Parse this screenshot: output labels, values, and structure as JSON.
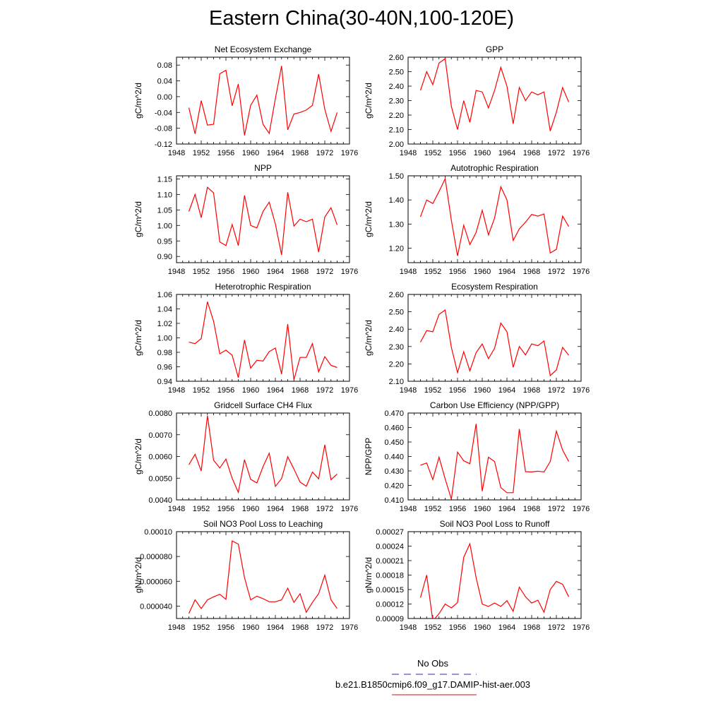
{
  "figure_title": "Eastern China(30-40N,100-120E)",
  "legend": {
    "items": [
      {
        "label": "No Obs",
        "color": "#5555cc",
        "dash": true
      },
      {
        "label": "b.e21.B1850cmip6.f09_g17.DAMIP-hist-aer.003",
        "color": "#e04040",
        "dash": false
      }
    ]
  },
  "series_color": "#ff0000",
  "chart_data": [
    {
      "type": "line",
      "title": "Net Ecosystem Exchange",
      "ylabel": "gC/m^2/d",
      "xlim": [
        1948,
        1976
      ],
      "ylim": [
        -0.12,
        0.1
      ],
      "xticks": [
        "1948",
        "1952",
        "1956",
        "1960",
        "1964",
        "1968",
        "1972",
        "1976"
      ],
      "yticks": [
        -0.12,
        -0.08,
        -0.04,
        0.0,
        0.04,
        0.08
      ],
      "ytick_labels": [
        "-0.12",
        "-0.08",
        "-0.04",
        "0.00",
        "0.04",
        "0.08"
      ],
      "x": [
        1950,
        1951,
        1952,
        1953,
        1954,
        1955,
        1956,
        1957,
        1958,
        1959,
        1960,
        1961,
        1962,
        1963,
        1964,
        1965,
        1966,
        1967,
        1968,
        1969,
        1970,
        1971,
        1972,
        1973,
        1974
      ],
      "values": [
        -0.028,
        -0.094,
        -0.01,
        -0.072,
        -0.07,
        0.058,
        0.067,
        -0.023,
        0.032,
        -0.098,
        -0.022,
        0.004,
        -0.07,
        -0.093,
        -0.005,
        0.078,
        -0.084,
        -0.044,
        -0.04,
        -0.034,
        -0.022,
        0.057,
        -0.032,
        -0.088,
        -0.04
      ]
    },
    {
      "type": "line",
      "title": "GPP",
      "ylabel": "gC/m^2/d",
      "xlim": [
        1948,
        1976
      ],
      "ylim": [
        2.0,
        2.6
      ],
      "xticks": [
        "1948",
        "1952",
        "1956",
        "1960",
        "1964",
        "1968",
        "1972",
        "1976"
      ],
      "yticks": [
        2.0,
        2.1,
        2.2,
        2.3,
        2.4,
        2.5,
        2.6
      ],
      "ytick_labels": [
        "2.00",
        "2.10",
        "2.20",
        "2.30",
        "2.40",
        "2.50",
        "2.60"
      ],
      "x": [
        1950,
        1951,
        1952,
        1953,
        1954,
        1955,
        1956,
        1957,
        1958,
        1959,
        1960,
        1961,
        1962,
        1963,
        1964,
        1965,
        1966,
        1967,
        1968,
        1969,
        1970,
        1971,
        1972,
        1973,
        1974
      ],
      "values": [
        2.37,
        2.5,
        2.41,
        2.56,
        2.59,
        2.26,
        2.1,
        2.3,
        2.15,
        2.37,
        2.36,
        2.25,
        2.37,
        2.53,
        2.4,
        2.14,
        2.39,
        2.3,
        2.36,
        2.34,
        2.36,
        2.09,
        2.22,
        2.39,
        2.29
      ]
    },
    {
      "type": "line",
      "title": "NPP",
      "ylabel": "gC/m^2/d",
      "xlim": [
        1948,
        1976
      ],
      "ylim": [
        0.88,
        1.16
      ],
      "xticks": [
        "1948",
        "1952",
        "1956",
        "1960",
        "1964",
        "1968",
        "1972",
        "1976"
      ],
      "yticks": [
        0.9,
        0.95,
        1.0,
        1.05,
        1.1,
        1.15
      ],
      "ytick_labels": [
        "0.90",
        "0.95",
        "1.00",
        "1.05",
        "1.10",
        "1.15"
      ],
      "x": [
        1950,
        1951,
        1952,
        1953,
        1954,
        1955,
        1956,
        1957,
        1958,
        1959,
        1960,
        1961,
        1962,
        1963,
        1964,
        1965,
        1966,
        1967,
        1968,
        1969,
        1970,
        1971,
        1972,
        1973,
        1974
      ],
      "values": [
        1.045,
        1.1,
        1.025,
        1.123,
        1.105,
        0.947,
        0.935,
        1.003,
        0.935,
        1.097,
        1.0,
        0.992,
        1.045,
        1.075,
        1.005,
        0.905,
        1.107,
        0.998,
        1.02,
        1.012,
        1.02,
        0.914,
        1.027,
        1.057,
        1.002
      ]
    },
    {
      "type": "line",
      "title": "Autotrophic Respiration",
      "ylabel": "gC/m^2/d",
      "xlim": [
        1948,
        1976
      ],
      "ylim": [
        1.14,
        1.5
      ],
      "xticks": [
        "1948",
        "1952",
        "1956",
        "1960",
        "1964",
        "1968",
        "1972",
        "1976"
      ],
      "yticks": [
        1.2,
        1.3,
        1.4,
        1.5
      ],
      "ytick_labels": [
        "1.20",
        "1.30",
        "1.40",
        "1.50"
      ],
      "x": [
        1950,
        1951,
        1952,
        1953,
        1954,
        1955,
        1956,
        1957,
        1958,
        1959,
        1960,
        1961,
        1962,
        1963,
        1964,
        1965,
        1966,
        1967,
        1968,
        1969,
        1970,
        1971,
        1972,
        1973,
        1974
      ],
      "values": [
        1.33,
        1.4,
        1.385,
        1.435,
        1.488,
        1.315,
        1.168,
        1.295,
        1.215,
        1.265,
        1.357,
        1.255,
        1.325,
        1.455,
        1.4,
        1.232,
        1.28,
        1.308,
        1.34,
        1.333,
        1.342,
        1.18,
        1.195,
        1.333,
        1.29
      ]
    },
    {
      "type": "line",
      "title": "Heterotrophic Respiration",
      "ylabel": "gC/m^2/d",
      "xlim": [
        1948,
        1976
      ],
      "ylim": [
        0.94,
        1.06
      ],
      "xticks": [
        "1948",
        "1952",
        "1956",
        "1960",
        "1964",
        "1968",
        "1972",
        "1976"
      ],
      "yticks": [
        0.94,
        0.96,
        0.98,
        1.0,
        1.02,
        1.04,
        1.06
      ],
      "ytick_labels": [
        "0.94",
        "0.96",
        "0.98",
        "1.00",
        "1.02",
        "1.04",
        "1.06"
      ],
      "x": [
        1950,
        1951,
        1952,
        1953,
        1954,
        1955,
        1956,
        1957,
        1958,
        1959,
        1960,
        1961,
        1962,
        1963,
        1964,
        1965,
        1966,
        1967,
        1968,
        1969,
        1970,
        1971,
        1972,
        1973,
        1974
      ],
      "values": [
        0.994,
        0.992,
        0.999,
        1.05,
        1.023,
        0.978,
        0.983,
        0.976,
        0.945,
        0.997,
        0.958,
        0.969,
        0.968,
        0.981,
        0.986,
        0.95,
        1.019,
        0.942,
        0.973,
        0.973,
        0.992,
        0.953,
        0.974,
        0.962,
        0.959
      ]
    },
    {
      "type": "line",
      "title": "Ecosystem Respiration",
      "ylabel": "gC/m^2/d",
      "xlim": [
        1948,
        1976
      ],
      "ylim": [
        2.1,
        2.6
      ],
      "xticks": [
        "1948",
        "1952",
        "1956",
        "1960",
        "1964",
        "1968",
        "1972",
        "1976"
      ],
      "yticks": [
        2.1,
        2.2,
        2.3,
        2.4,
        2.5,
        2.6
      ],
      "ytick_labels": [
        "2.10",
        "2.20",
        "2.30",
        "2.40",
        "2.50",
        "2.60"
      ],
      "x": [
        1950,
        1951,
        1952,
        1953,
        1954,
        1955,
        1956,
        1957,
        1958,
        1959,
        1960,
        1961,
        1962,
        1963,
        1964,
        1965,
        1966,
        1967,
        1968,
        1969,
        1970,
        1971,
        1972,
        1973,
        1974
      ],
      "values": [
        2.325,
        2.392,
        2.385,
        2.485,
        2.51,
        2.295,
        2.15,
        2.27,
        2.16,
        2.265,
        2.315,
        2.23,
        2.29,
        2.435,
        2.385,
        2.18,
        2.3,
        2.252,
        2.315,
        2.305,
        2.332,
        2.132,
        2.165,
        2.295,
        2.25
      ]
    },
    {
      "type": "line",
      "title": "Gridcell Surface CH4 Flux",
      "ylabel": "gC/m^2/d",
      "xlim": [
        1948,
        1976
      ],
      "ylim": [
        0.004,
        0.008
      ],
      "xticks": [
        "1948",
        "1952",
        "1956",
        "1960",
        "1964",
        "1968",
        "1972",
        "1976"
      ],
      "yticks": [
        0.004,
        0.005,
        0.006,
        0.007,
        0.008
      ],
      "ytick_labels": [
        "0.0040",
        "0.0050",
        "0.0060",
        "0.0070",
        "0.0080"
      ],
      "x": [
        1950,
        1951,
        1952,
        1953,
        1954,
        1955,
        1956,
        1957,
        1958,
        1959,
        1960,
        1961,
        1962,
        1963,
        1964,
        1965,
        1966,
        1967,
        1968,
        1969,
        1970,
        1971,
        1972,
        1973,
        1974
      ],
      "values": [
        0.00562,
        0.0061,
        0.00533,
        0.00788,
        0.00583,
        0.00547,
        0.00588,
        0.005,
        0.00435,
        0.00585,
        0.00495,
        0.00478,
        0.00553,
        0.00615,
        0.00462,
        0.00498,
        0.00599,
        0.00542,
        0.00482,
        0.00463,
        0.00528,
        0.00497,
        0.00654,
        0.00493,
        0.00519
      ]
    },
    {
      "type": "line",
      "title": "Carbon Use Efficiency (NPP/GPP)",
      "ylabel": "NPP/GPP",
      "xlim": [
        1948,
        1976
      ],
      "ylim": [
        0.41,
        0.47
      ],
      "xticks": [
        "1948",
        "1952",
        "1956",
        "1960",
        "1964",
        "1968",
        "1972",
        "1976"
      ],
      "yticks": [
        0.41,
        0.42,
        0.43,
        0.44,
        0.45,
        0.46,
        0.47
      ],
      "ytick_labels": [
        "0.410",
        "0.420",
        "0.430",
        "0.440",
        "0.450",
        "0.460",
        "0.470"
      ],
      "x": [
        1950,
        1951,
        1952,
        1953,
        1954,
        1955,
        1956,
        1957,
        1958,
        1959,
        1960,
        1961,
        1962,
        1963,
        1964,
        1965,
        1966,
        1967,
        1968,
        1969,
        1970,
        1971,
        1972,
        1973,
        1974
      ],
      "values": [
        0.434,
        0.4355,
        0.424,
        0.4395,
        0.4245,
        0.4105,
        0.443,
        0.437,
        0.435,
        0.4625,
        0.416,
        0.4395,
        0.4365,
        0.4185,
        0.415,
        0.415,
        0.459,
        0.4295,
        0.4293,
        0.4298,
        0.4293,
        0.4365,
        0.4575,
        0.4445,
        0.4365
      ]
    },
    {
      "type": "line",
      "title": "Soil NO3 Pool Loss to Leaching",
      "ylabel": "gN/m^2/d",
      "xlim": [
        1948,
        1976
      ],
      "ylim": [
        3e-05,
        0.0001
      ],
      "xticks": [
        "1948",
        "1952",
        "1956",
        "1960",
        "1964",
        "1968",
        "1972",
        "1976"
      ],
      "yticks": [
        4e-05,
        6e-05,
        8e-05,
        0.0001
      ],
      "ytick_labels": [
        "0.000040",
        "0.000060",
        "0.000080",
        "0.00010"
      ],
      "x": [
        1950,
        1951,
        1952,
        1953,
        1954,
        1955,
        1956,
        1957,
        1958,
        1959,
        1960,
        1961,
        1962,
        1963,
        1964,
        1965,
        1966,
        1967,
        1968,
        1969,
        1970,
        1971,
        1972,
        1973,
        1974
      ],
      "values": [
        3.4e-05,
        4.5e-05,
        3.8e-05,
        4.5e-05,
        4.75e-05,
        4.95e-05,
        4.55e-05,
        9.25e-05,
        9e-05,
        6.3e-05,
        4.5e-05,
        4.8e-05,
        4.6e-05,
        4.35e-05,
        4.35e-05,
        4.5e-05,
        5.45e-05,
        4.3e-05,
        5e-05,
        3.5e-05,
        4.3e-05,
        5e-05,
        6.5e-05,
        4.5e-05,
        3.8e-05
      ]
    },
    {
      "type": "line",
      "title": "Soil NO3 Pool Loss to Runoff",
      "ylabel": "gN/m^2/d",
      "xlim": [
        1948,
        1976
      ],
      "ylim": [
        9e-05,
        0.00027
      ],
      "xticks": [
        "1948",
        "1952",
        "1956",
        "1960",
        "1964",
        "1968",
        "1972",
        "1976"
      ],
      "yticks": [
        9e-05,
        0.00012,
        0.00015,
        0.00018,
        0.00021,
        0.00024,
        0.00027
      ],
      "ytick_labels": [
        "0.00009",
        "0.00012",
        "0.00015",
        "0.00018",
        "0.00021",
        "0.00024",
        "0.00027"
      ],
      "x": [
        1950,
        1951,
        1952,
        1953,
        1954,
        1955,
        1956,
        1957,
        1958,
        1959,
        1960,
        1961,
        1962,
        1963,
        1964,
        1965,
        1966,
        1967,
        1968,
        1969,
        1970,
        1971,
        1972,
        1973,
        1974
      ],
      "values": [
        0.000133,
        0.00018,
        8.5e-05,
        0.0001,
        0.00012,
        0.000112,
        0.000123,
        0.000217,
        0.000245,
        0.000175,
        0.00012,
        0.000115,
        0.000122,
        0.000115,
        0.000127,
        0.000105,
        0.000155,
        0.000135,
        0.000122,
        0.000128,
        0.000103,
        0.00015,
        0.000167,
        0.000161,
        0.000135
      ]
    }
  ]
}
